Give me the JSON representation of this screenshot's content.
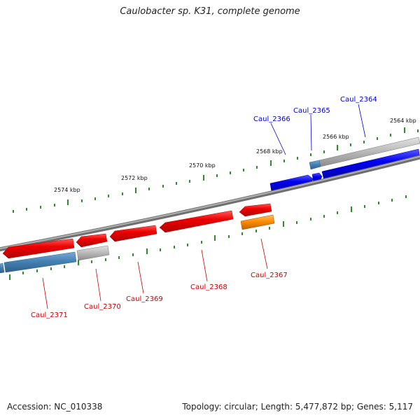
{
  "title": "Caulobacter sp. K31, complete genome",
  "footer": {
    "accession": "Accession: NC_010338",
    "summary": "Topology: circular; Length: 5,477,872 bp; Genes: 5,117"
  },
  "colors": {
    "backbone": "#8a8a8a",
    "tick": "#2e8b2e",
    "forward_label": "#0000cc",
    "reverse_label": "#cc0000",
    "blue": "#0000ee",
    "steelblue": "#4682b4",
    "gray": "#b8b8b8",
    "red": "#ee0000",
    "orange": "#ff8c00"
  },
  "scale_labels": [
    {
      "kbp": 2564,
      "label": "2564 kbp"
    },
    {
      "kbp": 2566,
      "label": "2566 kbp"
    },
    {
      "kbp": 2568,
      "label": "2568 kbp"
    },
    {
      "kbp": 2570,
      "label": "2570 kbp"
    },
    {
      "kbp": 2572,
      "label": "2572 kbp"
    },
    {
      "kbp": 2574,
      "label": "2574 kbp"
    }
  ],
  "gene_labels": [
    {
      "id": "caul-2364",
      "text": "Caul_2364",
      "strand": "forward"
    },
    {
      "id": "caul-2365",
      "text": "Caul_2365",
      "strand": "forward"
    },
    {
      "id": "caul-2366",
      "text": "Caul_2366",
      "strand": "forward"
    },
    {
      "id": "caul-2367",
      "text": "Caul_2367",
      "strand": "reverse"
    },
    {
      "id": "caul-2368",
      "text": "Caul_2368",
      "strand": "reverse"
    },
    {
      "id": "caul-2369",
      "text": "Caul_2369",
      "strand": "reverse"
    },
    {
      "id": "caul-2370",
      "text": "Caul_2370",
      "strand": "reverse"
    },
    {
      "id": "caul-2371",
      "text": "Caul_2371",
      "strand": "reverse"
    }
  ]
}
